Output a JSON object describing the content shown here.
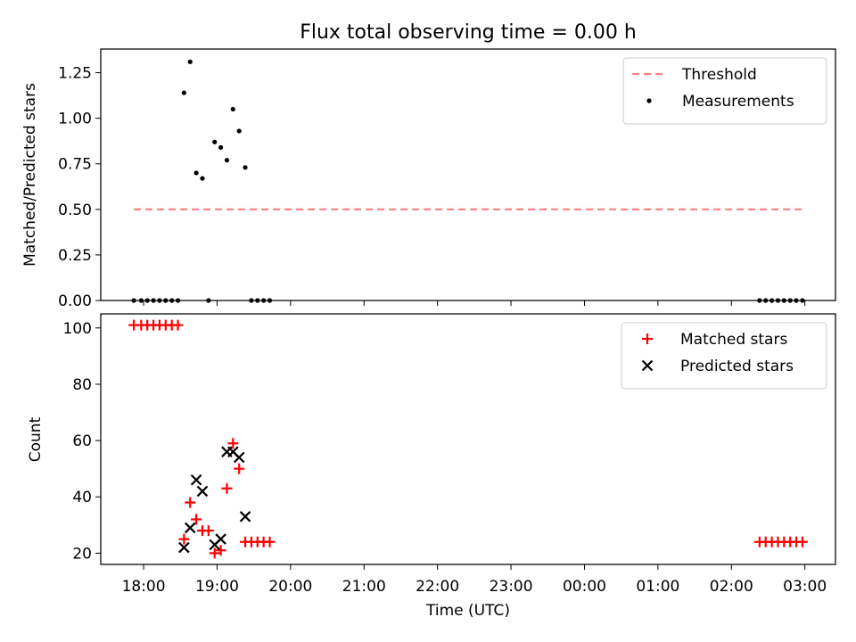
{
  "chart_data": [
    {
      "type": "scatter",
      "title": "Flux total observing time = 0.00 h",
      "xlabel": "",
      "ylabel": "Matched/Predicted stars",
      "ylim": [
        0,
        1.38
      ],
      "x_time_range": [
        "17:25",
        "03:25"
      ],
      "y_ticks": [
        "0.00",
        "0.25",
        "0.50",
        "0.75",
        "1.00",
        "1.25"
      ],
      "legend_position": "top-right",
      "series": [
        {
          "name": "Threshold",
          "style": "dashed-line",
          "color": "#ff7f7f",
          "x": [
            "17:52",
            "02:58"
          ],
          "y": [
            0.5,
            0.5
          ]
        },
        {
          "name": "Measurements",
          "style": "dot",
          "color": "#000000",
          "x": [
            "17:52",
            "17:58",
            "18:03",
            "18:08",
            "18:13",
            "18:18",
            "18:23",
            "18:28",
            "18:33",
            "18:38",
            "18:43",
            "18:48",
            "18:53",
            "18:58",
            "19:03",
            "19:08",
            "19:13",
            "19:18",
            "19:23",
            "19:28",
            "19:33",
            "19:38",
            "19:43",
            "02:23",
            "02:28",
            "02:33",
            "02:38",
            "02:43",
            "02:48",
            "02:53",
            "02:58"
          ],
          "y": [
            0,
            0,
            0,
            0,
            0,
            0,
            0,
            0,
            1.14,
            1.31,
            0.7,
            0.67,
            0,
            0.87,
            0.84,
            0.77,
            1.05,
            0.93,
            0.73,
            0,
            0,
            0,
            0,
            0,
            0,
            0,
            0,
            0,
            0,
            0,
            0
          ]
        }
      ]
    },
    {
      "type": "scatter",
      "title": "",
      "xlabel": "Time (UTC)",
      "ylabel": "Count",
      "ylim": [
        16,
        105
      ],
      "x_time_range": [
        "17:25",
        "03:25"
      ],
      "x_ticks": [
        "18:00",
        "19:00",
        "20:00",
        "21:00",
        "22:00",
        "23:00",
        "00:00",
        "01:00",
        "02:00",
        "03:00"
      ],
      "y_ticks": [
        "20",
        "40",
        "60",
        "80",
        "100"
      ],
      "legend_position": "top-right",
      "series": [
        {
          "name": "Matched stars",
          "style": "plus",
          "color": "#ff0000",
          "x": [
            "17:52",
            "17:58",
            "18:03",
            "18:08",
            "18:13",
            "18:18",
            "18:23",
            "18:28",
            "18:33",
            "18:38",
            "18:43",
            "18:48",
            "18:53",
            "18:58",
            "19:03",
            "19:08",
            "19:13",
            "19:18",
            "19:23",
            "19:28",
            "19:33",
            "19:38",
            "19:43",
            "02:23",
            "02:28",
            "02:33",
            "02:38",
            "02:43",
            "02:48",
            "02:53",
            "02:58"
          ],
          "y": [
            101,
            101,
            101,
            101,
            101,
            101,
            101,
            101,
            25,
            38,
            32,
            28,
            28,
            20,
            21,
            43,
            59,
            50,
            24,
            24,
            24,
            24,
            24,
            24,
            24,
            24,
            24,
            24,
            24,
            24,
            24
          ]
        },
        {
          "name": "Predicted stars",
          "style": "x",
          "color": "#000000",
          "x": [
            "18:33",
            "18:38",
            "18:43",
            "18:48",
            "18:58",
            "19:03",
            "19:08",
            "19:13",
            "19:18",
            "19:23"
          ],
          "y": [
            22,
            29,
            46,
            42,
            23,
            25,
            56,
            56,
            54,
            33
          ]
        }
      ]
    }
  ]
}
